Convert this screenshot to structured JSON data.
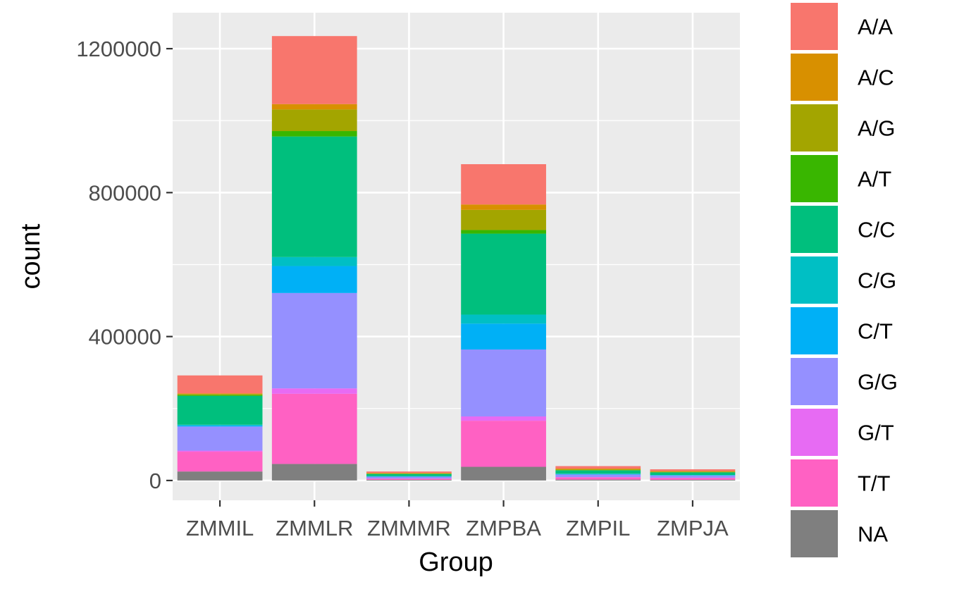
{
  "chart_data": {
    "type": "bar",
    "stacked": true,
    "xlabel": "Group",
    "ylabel": "count",
    "categories": [
      "ZMMIL",
      "ZMMLR",
      "ZMMMR",
      "ZMPBA",
      "ZMPIL",
      "ZMPJA"
    ],
    "ylim": [
      -55000,
      1300000
    ],
    "y_ticks": [
      0,
      400000,
      800000,
      1200000
    ],
    "y_tick_labels": [
      "0",
      "400000",
      "800000",
      "1200000"
    ],
    "grid": true,
    "legend_position": "right",
    "series": [
      {
        "name": "NA",
        "color": "#7F7F7F",
        "values": [
          25000,
          46000,
          2000,
          38000,
          2500,
          2000
        ]
      },
      {
        "name": "T/T",
        "color": "#FF61C3",
        "values": [
          55000,
          195000,
          3000,
          128000,
          6000,
          5000
        ]
      },
      {
        "name": "G/T",
        "color": "#E76BF3",
        "values": [
          3000,
          15000,
          500,
          12000,
          1000,
          800
        ]
      },
      {
        "name": "G/G",
        "color": "#9590FF",
        "values": [
          67000,
          265000,
          5000,
          186000,
          7000,
          6000
        ]
      },
      {
        "name": "C/T",
        "color": "#00B0F6",
        "values": [
          3000,
          75000,
          1000,
          72000,
          1500,
          1000
        ]
      },
      {
        "name": "C/G",
        "color": "#00BFC4",
        "values": [
          2000,
          25000,
          500,
          25000,
          1000,
          700
        ]
      },
      {
        "name": "C/C",
        "color": "#00BF7D",
        "values": [
          80000,
          335000,
          6000,
          225000,
          9000,
          7000
        ]
      },
      {
        "name": "A/T",
        "color": "#39B600",
        "values": [
          3000,
          15000,
          500,
          10000,
          1000,
          600
        ]
      },
      {
        "name": "A/G",
        "color": "#A3A500",
        "values": [
          2000,
          60000,
          1000,
          56000,
          2000,
          1500
        ]
      },
      {
        "name": "A/C",
        "color": "#D89000",
        "values": [
          2000,
          15000,
          1500,
          15000,
          2000,
          1500
        ]
      },
      {
        "name": "A/A",
        "color": "#F8766D",
        "values": [
          50000,
          189000,
          4000,
          112000,
          7000,
          5000
        ]
      }
    ],
    "legend_order": [
      "A/A",
      "A/C",
      "A/G",
      "A/T",
      "C/C",
      "C/G",
      "C/T",
      "G/G",
      "G/T",
      "T/T",
      "NA"
    ]
  }
}
